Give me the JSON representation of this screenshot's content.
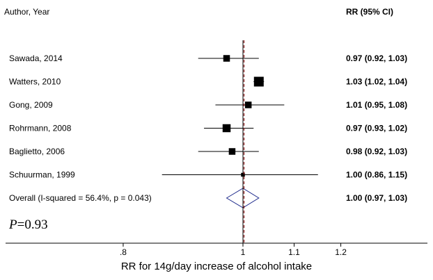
{
  "chart_data": {
    "type": "forest",
    "header": {
      "study_col": "Author, Year",
      "rr_col": "RR (95% CI)"
    },
    "studies": [
      {
        "label": "Sawada, 2014",
        "rr": 0.97,
        "lo": 0.92,
        "hi": 1.03,
        "weight": 0.55,
        "text": "0.97 (0.92, 1.03)"
      },
      {
        "label": "Watters, 2010",
        "rr": 1.03,
        "lo": 1.02,
        "hi": 1.04,
        "weight": 1.0,
        "text": "1.03 (1.02, 1.04)"
      },
      {
        "label": "Gong, 2009",
        "rr": 1.01,
        "lo": 0.95,
        "hi": 1.08,
        "weight": 0.55,
        "text": "1.01 (0.95, 1.08)"
      },
      {
        "label": "Rohrmann, 2008",
        "rr": 0.97,
        "lo": 0.93,
        "hi": 1.02,
        "weight": 0.75,
        "text": "0.97 (0.93, 1.02)"
      },
      {
        "label": "Baglietto, 2006",
        "rr": 0.98,
        "lo": 0.92,
        "hi": 1.03,
        "weight": 0.55,
        "text": "0.98 (0.92, 1.03)"
      },
      {
        "label": "Schuurman, 1999",
        "rr": 1.0,
        "lo": 0.86,
        "hi": 1.15,
        "weight": 0.15,
        "text": "1.00 (0.86, 1.15)"
      }
    ],
    "overall": {
      "label": "Overall  (I-squared = 56.4%, p = 0.043)",
      "rr": 1.0,
      "lo": 0.97,
      "hi": 1.03,
      "text": "1.00 (0.97, 1.03)"
    },
    "p_annotation": {
      "italic": "P",
      "rest": "=0.93"
    },
    "x_ticks": [
      {
        "value": 0.8,
        "label": ".8"
      },
      {
        "value": 1.0,
        "label": "1"
      },
      {
        "value": 1.1,
        "label": "1.1"
      },
      {
        "value": 1.2,
        "label": "1.2"
      }
    ],
    "xlabel": "RR for 14g/day increase of alcohol intake",
    "null_line": 1,
    "colors": {
      "ci_line": "#000000",
      "null_line": "#000000",
      "overall_line": "#8b1a1a",
      "diamond": "#1e2a8c",
      "marker": "#000000"
    }
  }
}
